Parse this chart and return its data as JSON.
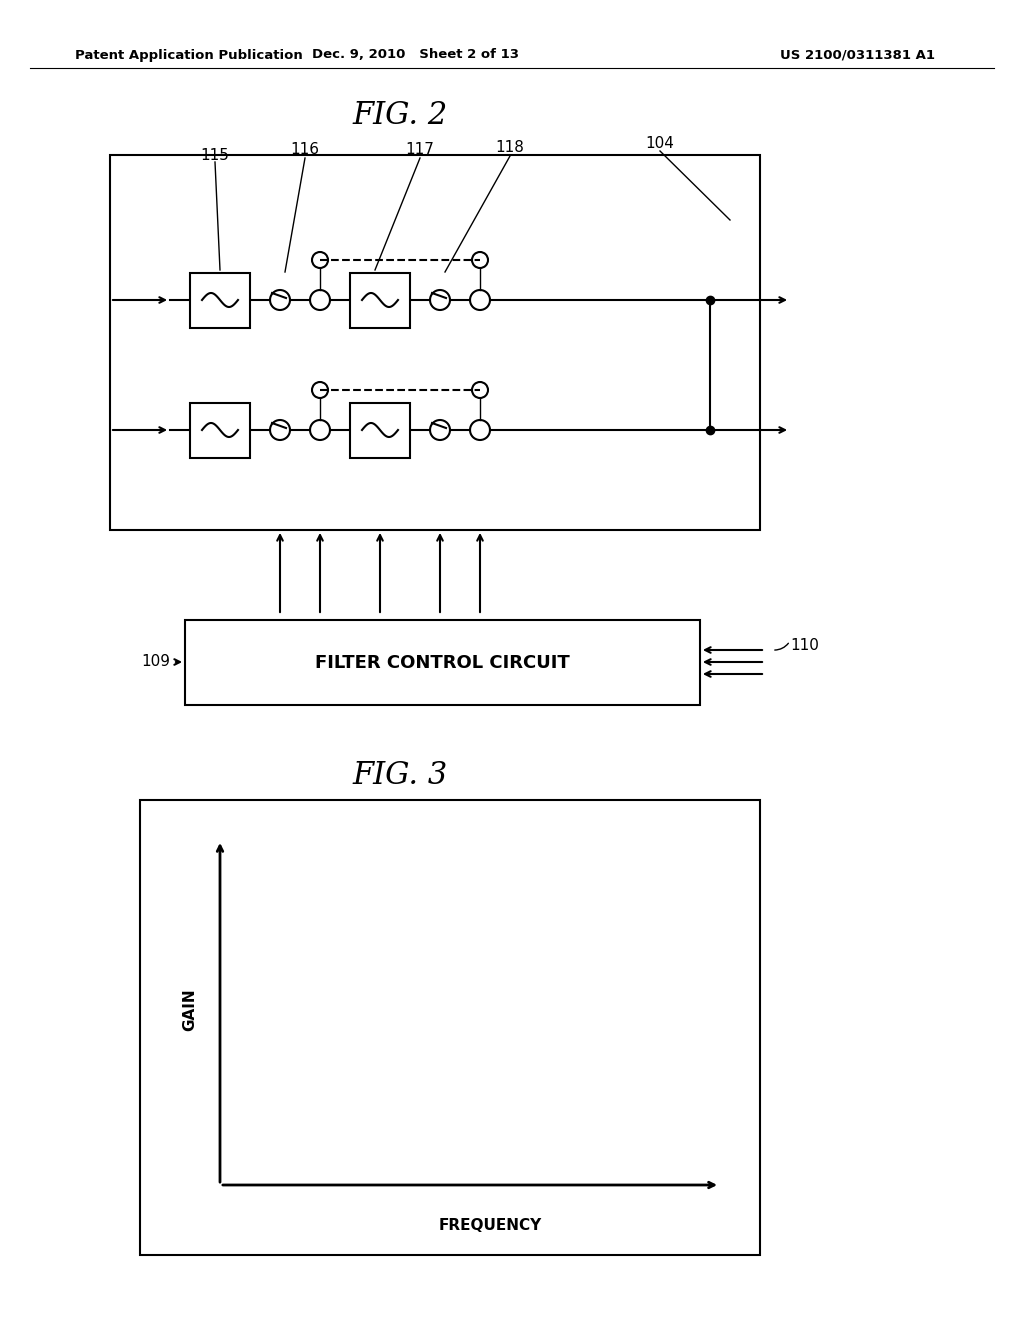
{
  "background_color": "#ffffff",
  "header_left": "Patent Application Publication",
  "header_center": "Dec. 9, 2010   Sheet 2 of 13",
  "header_right": "US 2100/0311381 A1",
  "fig2_title": "FIG. 2",
  "fig3_title": "FIG. 3",
  "label_104": "104",
  "label_109": "109",
  "label_110": "110",
  "label_115": "115",
  "label_116": "116",
  "label_117": "117",
  "label_118": "118",
  "filter_control_text": "FILTER CONTROL CIRCUIT",
  "gain_label": "GAIN",
  "freq_label": "FREQUENCY"
}
